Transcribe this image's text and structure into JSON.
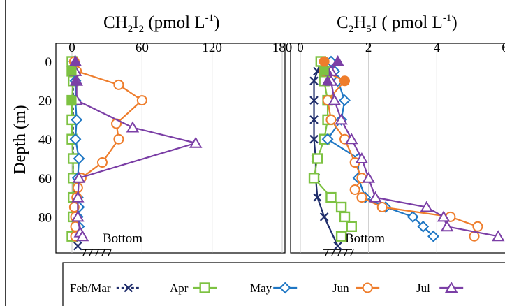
{
  "chart_data": [
    {
      "type": "line",
      "title": "CH2I2 (pmol L-1)",
      "title_parts": {
        "main_a": "CH",
        "sub_a": "2",
        "main_b": "I",
        "sub_b": "2",
        "main_c": " (pmol L",
        "sup": "-1",
        "main_d": ")"
      },
      "ylabel": "Depth (m)",
      "xlim": [
        0,
        180
      ],
      "ylim": [
        0,
        95
      ],
      "y_inverted": true,
      "x_ticks": [
        0,
        60,
        120,
        180
      ],
      "y_ticks": [
        0,
        20,
        40,
        60,
        80
      ],
      "grid": "vertical",
      "bottom_label": "Bottom",
      "bottom_depth": 95,
      "series": [
        {
          "name": "Feb/Mar",
          "color": "#1f2d6b",
          "marker": "x",
          "dashed": true,
          "points": [
            [
              1,
              1
            ],
            [
              1,
              5
            ],
            [
              1,
              10
            ],
            [
              1,
              20
            ],
            [
              1,
              30
            ],
            [
              1,
              40
            ],
            [
              1,
              50
            ],
            [
              1,
              60
            ],
            [
              2,
              70
            ],
            [
              2,
              80
            ],
            [
              3,
              90
            ],
            [
              5,
              95
            ]
          ]
        },
        {
          "name": "Apr",
          "color": "#7dc242",
          "marker": "square",
          "dashed": false,
          "points": [
            [
              0,
              0
            ],
            [
              0,
              5
            ],
            [
              1,
              10
            ],
            [
              0,
              20
            ],
            [
              0,
              30
            ],
            [
              0,
              40
            ],
            [
              1,
              50
            ],
            [
              1,
              60
            ],
            [
              1,
              70
            ],
            [
              1,
              80
            ],
            [
              0,
              90
            ]
          ]
        },
        {
          "name": "May",
          "color": "#1f77c4",
          "marker": "diamond",
          "dashed": false,
          "points": [
            [
              2,
              0
            ],
            [
              2,
              5
            ],
            [
              3,
              10
            ],
            [
              3,
              20
            ],
            [
              4,
              30
            ],
            [
              3,
              40
            ],
            [
              6,
              50
            ],
            [
              5,
              60
            ],
            [
              5,
              70
            ],
            [
              6,
              75
            ],
            [
              5,
              80
            ],
            [
              6,
              85
            ],
            [
              7,
              90
            ]
          ]
        },
        {
          "name": "Jun",
          "color": "#ee7d2c",
          "marker": "circle",
          "dashed": false,
          "points": [
            [
              2,
              0
            ],
            [
              4,
              5
            ],
            [
              40,
              12
            ],
            [
              60,
              20
            ],
            [
              38,
              32
            ],
            [
              40,
              40
            ],
            [
              26,
              52
            ],
            [
              8,
              60
            ],
            [
              5,
              65
            ],
            [
              4,
              70
            ],
            [
              2,
              75
            ],
            [
              3,
              80
            ],
            [
              3,
              85
            ],
            [
              3,
              90
            ]
          ]
        },
        {
          "name": "Jul",
          "color": "#7b3fa6",
          "marker": "triangle",
          "dashed": false,
          "points": [
            [
              3,
              0
            ],
            [
              3,
              5
            ],
            [
              4,
              10
            ],
            [
              4,
              20
            ],
            [
              52,
              34
            ],
            [
              106,
              42
            ],
            [
              6,
              60
            ],
            [
              5,
              70
            ],
            [
              5,
              80
            ],
            [
              7,
              88
            ],
            [
              9,
              90
            ]
          ]
        }
      ]
    },
    {
      "type": "line",
      "title": "C2H5I ( pmol L-1)",
      "title_parts": {
        "main_a": "C",
        "sub_a": "2",
        "main_b": "H",
        "sub_b": "5",
        "main_c": "I ( pmol L",
        "sup": "-1",
        "main_d": ")"
      },
      "xlim": [
        0,
        6
      ],
      "ylim": [
        0,
        95
      ],
      "y_inverted": true,
      "x_ticks": [
        0,
        2,
        4,
        6
      ],
      "grid": "vertical",
      "bottom_label": "Bottom",
      "bottom_depth": 95,
      "series": [
        {
          "name": "Feb/Mar",
          "color": "#1f2d6b",
          "marker": "x",
          "dashed": false,
          "points": [
            [
              0.6,
              0
            ],
            [
              0.5,
              5
            ],
            [
              0.4,
              10
            ],
            [
              0.4,
              20
            ],
            [
              0.4,
              30
            ],
            [
              0.4,
              40
            ],
            [
              0.45,
              50
            ],
            [
              0.45,
              60
            ],
            [
              0.5,
              70
            ],
            [
              0.7,
              80
            ],
            [
              1.1,
              95
            ]
          ]
        },
        {
          "name": "Apr",
          "color": "#7dc242",
          "marker": "square",
          "dashed": false,
          "points": [
            [
              0.6,
              0
            ],
            [
              0.7,
              5
            ],
            [
              0.7,
              10
            ],
            [
              0.8,
              20
            ],
            [
              0.8,
              30
            ],
            [
              0.7,
              40
            ],
            [
              0.5,
              50
            ],
            [
              0.4,
              60
            ],
            [
              0.9,
              70
            ],
            [
              1.2,
              75
            ],
            [
              1.3,
              80
            ],
            [
              1.5,
              85
            ],
            [
              1.2,
              90
            ]
          ]
        },
        {
          "name": "May",
          "color": "#1f77c4",
          "marker": "diamond",
          "dashed": false,
          "points": [
            [
              0.9,
              0
            ],
            [
              1.0,
              5
            ],
            [
              1.1,
              10
            ],
            [
              1.3,
              20
            ],
            [
              1.2,
              30
            ],
            [
              0.8,
              40
            ],
            [
              1.7,
              50
            ],
            [
              1.7,
              60
            ],
            [
              1.9,
              70
            ],
            [
              2.5,
              75
            ],
            [
              3.3,
              80
            ],
            [
              3.6,
              85
            ],
            [
              3.9,
              90
            ]
          ]
        },
        {
          "name": "Jun",
          "color": "#ee7d2c",
          "marker": "circle",
          "dashed": false,
          "points": [
            [
              0.7,
              0
            ],
            [
              0.7,
              5
            ],
            [
              1.3,
              10
            ],
            [
              0.8,
              20
            ],
            [
              0.9,
              30
            ],
            [
              1.3,
              40
            ],
            [
              1.6,
              52
            ],
            [
              1.8,
              60
            ],
            [
              1.6,
              66
            ],
            [
              1.8,
              70
            ],
            [
              2.4,
              75
            ],
            [
              4.4,
              80
            ],
            [
              5.2,
              85
            ],
            [
              5.1,
              90
            ]
          ]
        },
        {
          "name": "Jul",
          "color": "#7b3fa6",
          "marker": "triangle",
          "dashed": false,
          "points": [
            [
              1.1,
              0
            ],
            [
              0.9,
              5
            ],
            [
              0.9,
              10
            ],
            [
              1.0,
              20
            ],
            [
              1.2,
              30
            ],
            [
              1.5,
              40
            ],
            [
              1.8,
              50
            ],
            [
              2.0,
              60
            ],
            [
              2.2,
              70
            ],
            [
              3.7,
              75
            ],
            [
              4.2,
              80
            ],
            [
              4.3,
              85
            ],
            [
              5.8,
              90
            ]
          ]
        }
      ]
    }
  ],
  "legend": {
    "placement": "bottom",
    "items": [
      {
        "label": "Feb/Mar",
        "color": "#1f2d6b",
        "marker": "x",
        "dashed": true
      },
      {
        "label": "Apr",
        "color": "#7dc242",
        "marker": "square",
        "dashed": false
      },
      {
        "label": "May",
        "color": "#1f77c4",
        "marker": "diamond",
        "dashed": false
      },
      {
        "label": "Jun",
        "color": "#ee7d2c",
        "marker": "circle",
        "dashed": false
      },
      {
        "label": "Jul",
        "color": "#7b3fa6",
        "marker": "triangle",
        "dashed": false
      }
    ]
  }
}
